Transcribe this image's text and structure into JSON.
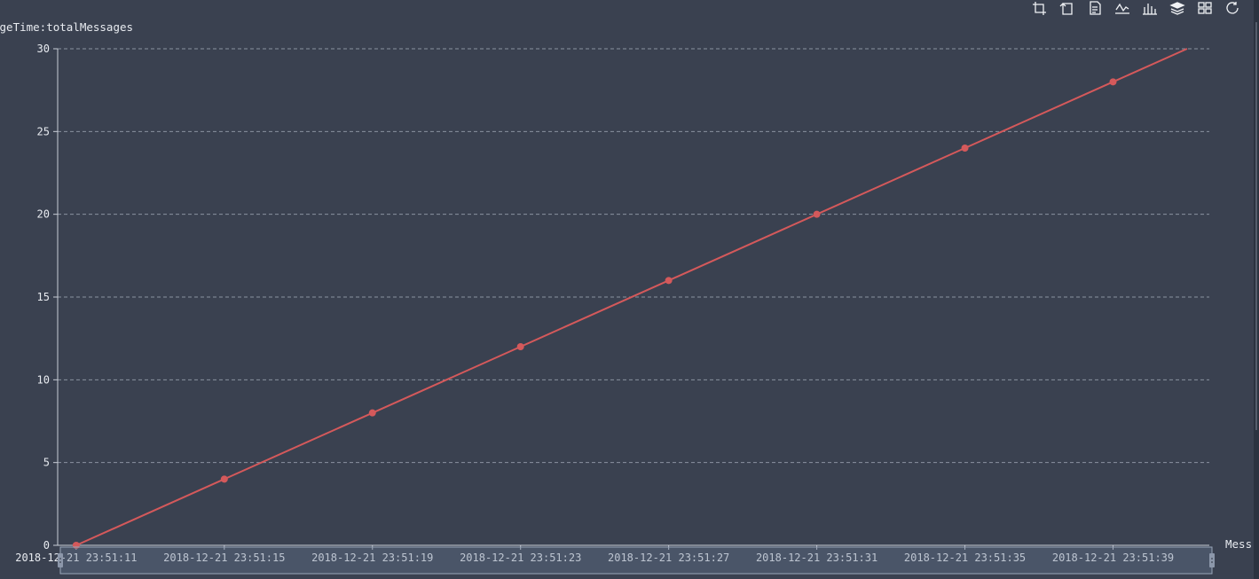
{
  "colors": {
    "background": "#3a4150",
    "series_line": "#d4595b",
    "grid": "#8a92a0",
    "axis": "#c8cdd6",
    "text": "#e8ebf0",
    "zoom_bar": "#6b7a94"
  },
  "toolbar": {
    "items": [
      {
        "name": "zoom-select-icon"
      },
      {
        "name": "zoom-reset-icon"
      },
      {
        "name": "data-view-icon"
      },
      {
        "name": "line-type-icon"
      },
      {
        "name": "bar-type-icon"
      },
      {
        "name": "stack-icon"
      },
      {
        "name": "tiled-icon"
      },
      {
        "name": "restore-icon"
      },
      {
        "name": "save-image-icon"
      }
    ]
  },
  "chart_data": {
    "type": "line",
    "legend_label": "ageTime:totalMessages",
    "xaxis_label": "Mess",
    "x_tick_labels": [
      "2018-12-21 23:51:11",
      "2018-12-21 23:51:15",
      "2018-12-21 23:51:19",
      "2018-12-21 23:51:23",
      "2018-12-21 23:51:27",
      "2018-12-21 23:51:31",
      "2018-12-21 23:51:35",
      "2018-12-21 23:51:39"
    ],
    "y_ticks": [
      0,
      5,
      10,
      15,
      20,
      25,
      30
    ],
    "ylim": [
      0,
      30
    ],
    "x_range_seconds": [
      11,
      42.1
    ],
    "grid": true,
    "series": [
      {
        "x_seconds": [
          11.5,
          15.5,
          19.5,
          23.5,
          27.5,
          31.5,
          35.5,
          39.5,
          41.5
        ],
        "values": [
          0,
          4,
          8,
          12,
          16,
          20,
          24,
          28,
          30
        ],
        "markers": [
          true,
          true,
          true,
          true,
          true,
          true,
          true,
          true,
          false
        ]
      }
    ]
  }
}
